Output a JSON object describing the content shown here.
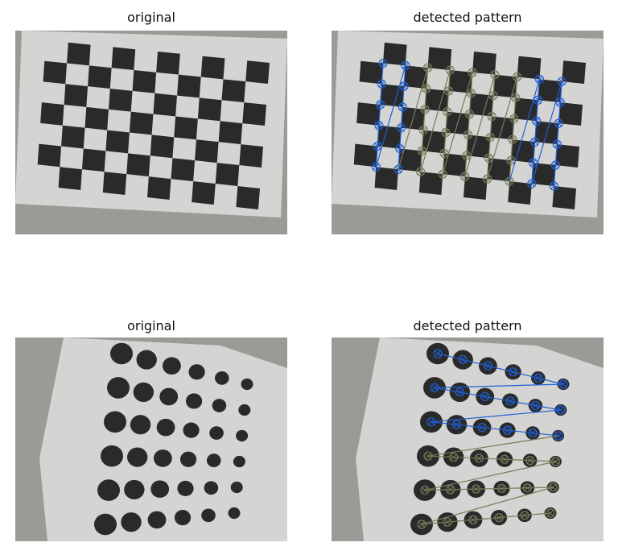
{
  "panels": [
    {
      "title": "original"
    },
    {
      "title": "detected pattern"
    },
    {
      "title": "original"
    },
    {
      "title": "detected pattern"
    }
  ],
  "colors": {
    "background_scene": "#9a9a96",
    "board_paper": "#d4d4d2",
    "square_dark": "#2a2a2a",
    "detected_blue": "#1f5fd6",
    "detected_olive": "#7a7a5a"
  }
}
